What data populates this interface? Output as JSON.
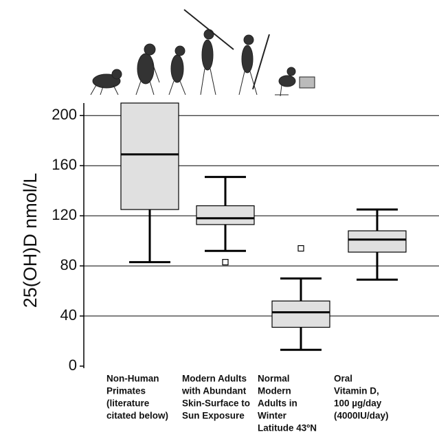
{
  "chart_data": {
    "type": "box",
    "ylabel": "25(OH)D  nmol/L",
    "ylim": [
      0,
      210
    ],
    "yticks": [
      0,
      40,
      80,
      120,
      160,
      200
    ],
    "grid": true,
    "box_color": "#e0e0e0",
    "categories": [
      [
        "Non-Human",
        "Primates",
        "(literature",
        "citated below)"
      ],
      [
        "Modern Adults",
        "with Abundant",
        "Skin-Surface to",
        "Sun Exposure"
      ],
      [
        "Normal",
        "Modern",
        "Adults in",
        "Winter",
        "Latitude 43ºN"
      ],
      [
        "Oral",
        "Vitamin D,",
        "100 µg/day",
        "(4000IU/day)"
      ]
    ],
    "boxes": [
      {
        "low": 83,
        "q1": 125,
        "median": 169,
        "q3": 210,
        "high": null,
        "outliers": []
      },
      {
        "low": 92,
        "q1": 113,
        "median": 118,
        "q3": 128,
        "high": 151,
        "outliers": [
          83
        ]
      },
      {
        "low": 13,
        "q1": 31,
        "median": 43,
        "q3": 52,
        "high": 70,
        "outliers": [
          94
        ]
      },
      {
        "low": 69,
        "q1": 91,
        "median": 101,
        "q3": 108,
        "high": 125,
        "outliers": []
      }
    ]
  }
}
